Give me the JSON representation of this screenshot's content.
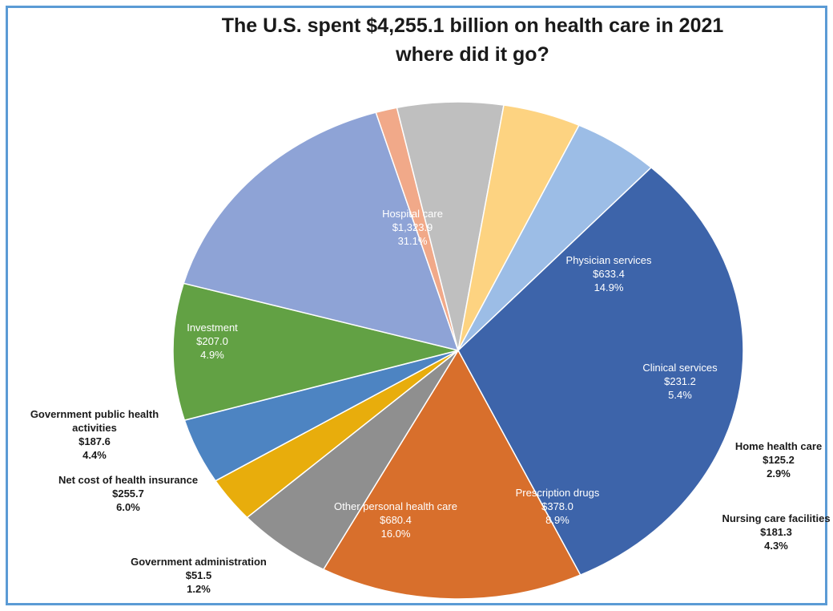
{
  "chart_data": {
    "type": "pie",
    "title": "The U.S. spent $4,255.1 billion on health care in 2021",
    "subtitle": "where did it go?",
    "slices": [
      {
        "name": "Hospital care",
        "value_label": "$1,323.9",
        "pct_label": "31.1%",
        "value": 1323.9,
        "pct": 31.1,
        "color": "#3d64aa"
      },
      {
        "name": "Physician services",
        "value_label": "$633.4",
        "pct_label": "14.9%",
        "value": 633.4,
        "pct": 14.9,
        "color": "#d86f2c"
      },
      {
        "name": "Clinical services",
        "value_label": "$231.2",
        "pct_label": "5.4%",
        "value": 231.2,
        "pct": 5.4,
        "color": "#8f8f8f"
      },
      {
        "name": "Home health care",
        "value_label": "$125.2",
        "pct_label": "2.9%",
        "value": 125.2,
        "pct": 2.9,
        "color": "#e8ad0c"
      },
      {
        "name": "Nursing care facilities",
        "value_label": "$181.3",
        "pct_label": "4.3%",
        "value": 181.3,
        "pct": 4.3,
        "color": "#4d84c2"
      },
      {
        "name": "Prescription drugs",
        "value_label": "$378.0",
        "pct_label": "8.9%",
        "value": 378.0,
        "pct": 8.9,
        "color": "#62a144"
      },
      {
        "name": "Other personal health care",
        "value_label": "$680.4",
        "pct_label": "16.0%",
        "value": 680.4,
        "pct": 16.0,
        "color": "#8ea3d6"
      },
      {
        "name": "Government administration",
        "value_label": "$51.5",
        "pct_label": "1.2%",
        "value": 51.5,
        "pct": 1.2,
        "color": "#f1a989"
      },
      {
        "name": "Net cost of health insurance",
        "value_label": "$255.7",
        "pct_label": "6.0%",
        "value": 255.7,
        "pct": 6.0,
        "color": "#bfbfbf"
      },
      {
        "name": "Government public health activities",
        "value_label": "$187.6",
        "pct_label": "4.4%",
        "value": 187.6,
        "pct": 4.4,
        "color": "#fdd381"
      },
      {
        "name": "Investment",
        "value_label": "$207.0",
        "pct_label": "4.9%",
        "value": 207.0,
        "pct": 4.9,
        "color": "#9cbde6"
      }
    ]
  }
}
